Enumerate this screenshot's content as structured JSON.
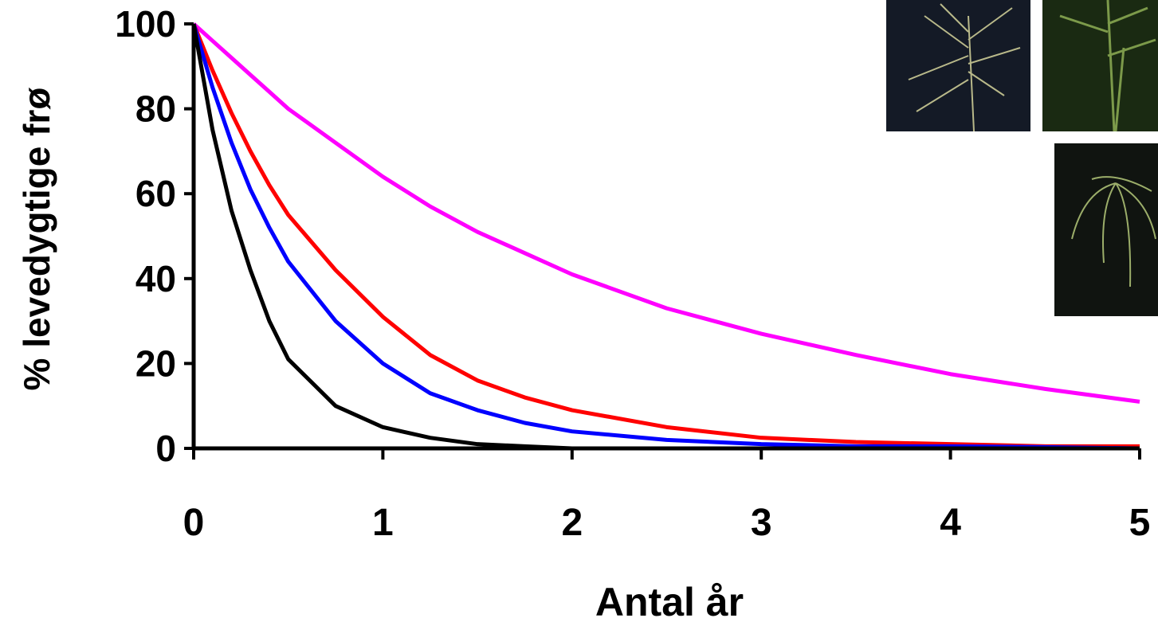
{
  "chart_data": {
    "type": "line",
    "x_label": "Antal år",
    "y_label": "% levedygtige frø",
    "x": [
      0,
      0.1,
      0.2,
      0.3,
      0.4,
      0.5,
      0.75,
      1,
      1.25,
      1.5,
      1.75,
      2,
      2.5,
      3,
      3.5,
      4,
      4.5,
      5
    ],
    "series": [
      {
        "color": "#ff00ff",
        "values": [
          100,
          96,
          92,
          88,
          84,
          80,
          72,
          64,
          57,
          51,
          46,
          41,
          33,
          27,
          22,
          17.5,
          14,
          11
        ]
      },
      {
        "color": "#ff0000",
        "values": [
          100,
          89,
          79,
          70,
          62,
          55,
          42,
          31,
          22,
          16,
          12,
          9,
          5,
          2.5,
          1.5,
          1,
          0.5,
          0.5
        ]
      },
      {
        "color": "#0000ff",
        "values": [
          100,
          85,
          72,
          61,
          52,
          44,
          30,
          20,
          13,
          9,
          6,
          4,
          2,
          1,
          0.5,
          0.5,
          0.3,
          0
        ]
      },
      {
        "color": "#000000",
        "values": [
          100,
          75,
          56,
          42,
          30,
          21,
          10,
          5,
          2.5,
          1,
          0.5,
          0,
          0,
          0,
          0,
          0,
          0,
          0
        ]
      }
    ],
    "xlim": [
      0,
      5
    ],
    "xticks": [
      0,
      1,
      2,
      3,
      4,
      5
    ],
    "ylim": [
      0,
      100
    ],
    "yticks": [
      0,
      20,
      40,
      60,
      80,
      100
    ]
  }
}
